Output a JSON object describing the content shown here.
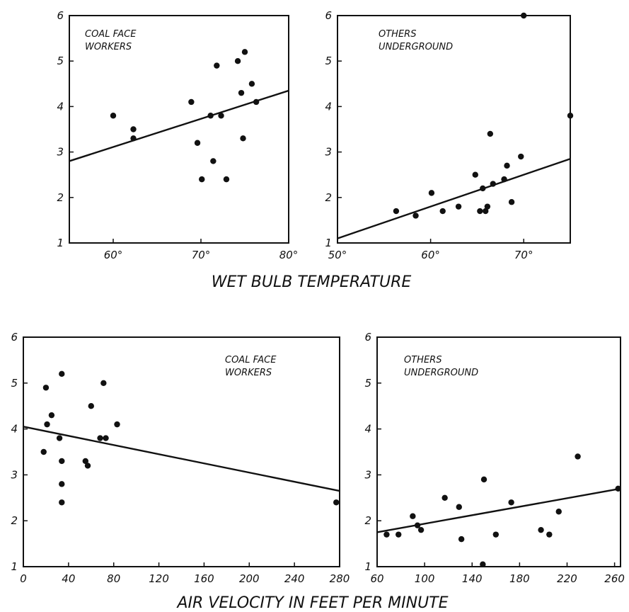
{
  "figure": {
    "top_xlabel": "WET BULB TEMPERATURE",
    "bottom_xlabel": "AIR VELOCITY IN FEET PER MINUTE"
  },
  "chart_data": [
    {
      "type": "scatter",
      "annotation": [
        "COAL FACE",
        "WORKERS"
      ],
      "xlim": [
        55,
        80
      ],
      "ylim": [
        1,
        6
      ],
      "xticks": [
        60,
        70,
        80
      ],
      "xtick_labels": [
        "60°",
        "70°",
        "80°"
      ],
      "yticks": [
        1,
        2,
        3,
        4,
        5,
        6
      ],
      "ytick_labels": [
        "1",
        "2",
        "3",
        "4",
        "5",
        "6"
      ],
      "points": [
        [
          60,
          3.8
        ],
        [
          62.3,
          3.5
        ],
        [
          62.3,
          3.3
        ],
        [
          68.9,
          4.1
        ],
        [
          69.6,
          3.2
        ],
        [
          70.1,
          2.4
        ],
        [
          71.1,
          3.8
        ],
        [
          71.4,
          2.8
        ],
        [
          71.8,
          4.9
        ],
        [
          72.3,
          3.8
        ],
        [
          72.9,
          2.4
        ],
        [
          74.2,
          5.0
        ],
        [
          74.6,
          4.3
        ],
        [
          74.8,
          3.3
        ],
        [
          75.0,
          5.2
        ],
        [
          75.8,
          4.5
        ],
        [
          76.3,
          4.1
        ]
      ],
      "fit_line": [
        [
          55,
          2.8
        ],
        [
          80,
          4.35
        ]
      ]
    },
    {
      "type": "scatter",
      "annotation": [
        "OTHERS",
        "UNDERGROUND"
      ],
      "xlim": [
        50,
        75
      ],
      "ylim": [
        1,
        6
      ],
      "xticks": [
        50,
        60,
        70
      ],
      "xtick_labels": [
        "50°",
        "60°",
        "70°"
      ],
      "yticks": [
        1,
        2,
        3,
        4,
        5,
        6
      ],
      "ytick_labels": [
        "1",
        "2",
        "3",
        "4",
        "5",
        "6"
      ],
      "points": [
        [
          56.3,
          1.7
        ],
        [
          58.4,
          1.6
        ],
        [
          60.1,
          2.1
        ],
        [
          61.3,
          1.7
        ],
        [
          63.0,
          1.8
        ],
        [
          64.8,
          2.5
        ],
        [
          65.3,
          1.7
        ],
        [
          65.6,
          2.2
        ],
        [
          65.9,
          1.7
        ],
        [
          66.1,
          1.8
        ],
        [
          66.4,
          3.4
        ],
        [
          66.7,
          2.3
        ],
        [
          67.9,
          2.4
        ],
        [
          68.2,
          2.7
        ],
        [
          68.7,
          1.9
        ],
        [
          69.7,
          2.9
        ],
        [
          70.0,
          6.0
        ],
        [
          75.0,
          3.8
        ]
      ],
      "fit_line": [
        [
          50,
          1.1
        ],
        [
          75,
          2.85
        ]
      ]
    },
    {
      "type": "scatter",
      "annotation": [
        "COAL FACE",
        "WORKERS"
      ],
      "xlim": [
        0,
        280
      ],
      "ylim": [
        1,
        6
      ],
      "xticks": [
        0,
        40,
        80,
        120,
        160,
        200,
        240,
        280
      ],
      "xtick_labels": [
        "0",
        "40",
        "80",
        "120",
        "160",
        "200",
        "240",
        "280"
      ],
      "yticks": [
        1,
        2,
        3,
        4,
        5,
        6
      ],
      "ytick_labels": [
        "1",
        "2",
        "3",
        "4",
        "5",
        "6"
      ],
      "points": [
        [
          18,
          3.5
        ],
        [
          20,
          4.9
        ],
        [
          21,
          4.1
        ],
        [
          25,
          4.3
        ],
        [
          32,
          3.8
        ],
        [
          34,
          5.2
        ],
        [
          34,
          3.3
        ],
        [
          34,
          2.8
        ],
        [
          34,
          2.4
        ],
        [
          55,
          3.3
        ],
        [
          57,
          3.2
        ],
        [
          60,
          4.5
        ],
        [
          68,
          3.8
        ],
        [
          71,
          5.0
        ],
        [
          73,
          3.8
        ],
        [
          83,
          4.1
        ],
        [
          277,
          2.4
        ]
      ],
      "fit_line": [
        [
          0,
          4.05
        ],
        [
          280,
          2.65
        ]
      ]
    },
    {
      "type": "scatter",
      "annotation": [
        "OTHERS",
        "UNDERGROUND"
      ],
      "xlim": [
        60,
        265
      ],
      "ylim": [
        1,
        6
      ],
      "xticks": [
        60,
        100,
        140,
        180,
        220,
        260
      ],
      "xtick_labels": [
        "60",
        "100",
        "140",
        "180",
        "220",
        "260"
      ],
      "yticks": [
        1,
        2,
        3,
        4,
        5,
        6
      ],
      "ytick_labels": [
        "1",
        "2",
        "3",
        "4",
        "5",
        "6"
      ],
      "points": [
        [
          68,
          1.7
        ],
        [
          78,
          1.7
        ],
        [
          90,
          2.1
        ],
        [
          94,
          1.9
        ],
        [
          97,
          1.8
        ],
        [
          117,
          2.5
        ],
        [
          129,
          2.3
        ],
        [
          131,
          1.6
        ],
        [
          150,
          2.9
        ],
        [
          149,
          1.05
        ],
        [
          160,
          1.7
        ],
        [
          173,
          2.4
        ],
        [
          198,
          1.8
        ],
        [
          205,
          1.7
        ],
        [
          213,
          2.2
        ],
        [
          229,
          3.4
        ],
        [
          263,
          2.7
        ]
      ],
      "fit_line": [
        [
          60,
          1.75
        ],
        [
          265,
          2.7
        ]
      ]
    }
  ]
}
